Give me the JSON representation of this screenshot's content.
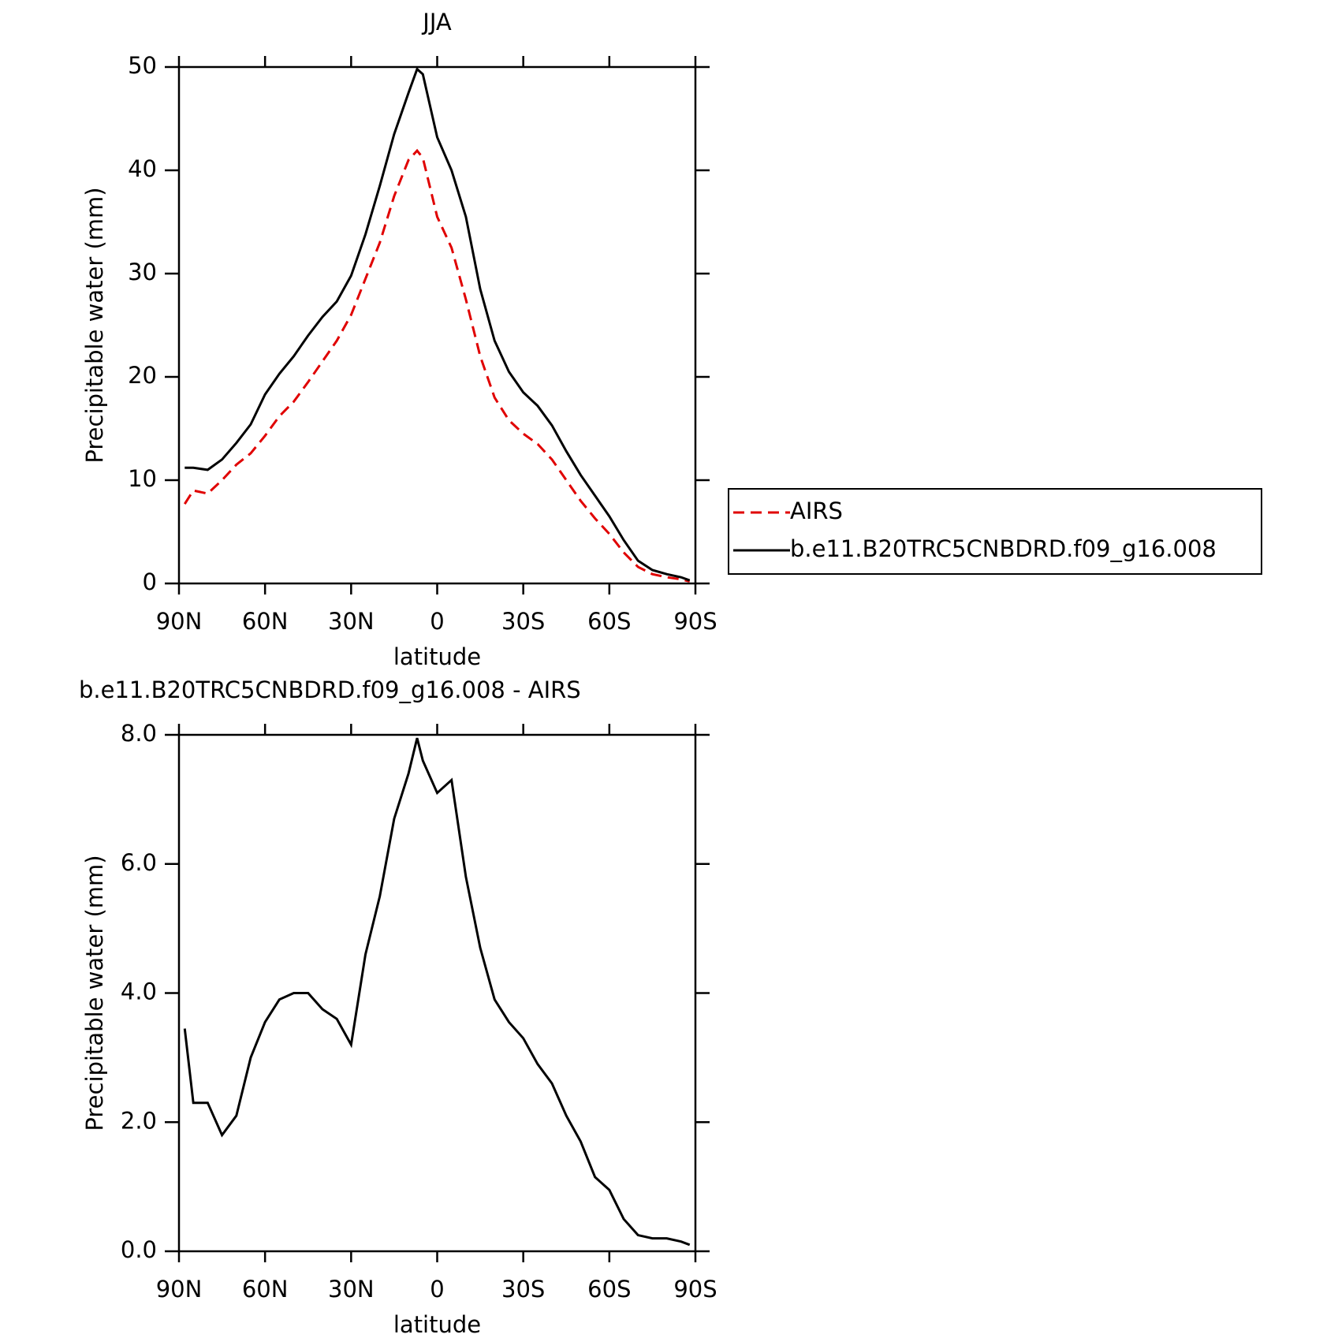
{
  "chart_data": [
    {
      "type": "line",
      "title": "JJA",
      "xlabel": "latitude",
      "ylabel": "Precipitable water (mm)",
      "x": [
        88,
        85,
        80,
        75,
        70,
        65,
        60,
        55,
        50,
        45,
        40,
        35,
        30,
        25,
        20,
        15,
        10,
        7,
        5,
        0,
        -5,
        -10,
        -15,
        -20,
        -25,
        -30,
        -35,
        -40,
        -45,
        -50,
        -55,
        -60,
        -65,
        -70,
        -75,
        -80,
        -85,
        -88
      ],
      "xlim": [
        90,
        -90
      ],
      "xticks": [
        {
          "value": 90,
          "label": "90N"
        },
        {
          "value": 60,
          "label": "60N"
        },
        {
          "value": 30,
          "label": "30N"
        },
        0,
        {
          "value": -30,
          "label": "30S"
        },
        {
          "value": -60,
          "label": "60S"
        },
        {
          "value": -90,
          "label": "90S"
        }
      ],
      "ylim": [
        0,
        50
      ],
      "yticks": [
        0,
        10,
        20,
        30,
        40,
        50
      ],
      "legend": "right",
      "series": [
        {
          "name": "AIRS",
          "color": "#e00000",
          "dash": true,
          "values": [
            7.7,
            9.0,
            8.7,
            10.0,
            11.5,
            12.6,
            14.3,
            16.2,
            17.6,
            19.5,
            21.5,
            23.5,
            26,
            29.5,
            33,
            37.5,
            41,
            41.9,
            41.2,
            35.5,
            32.5,
            27.5,
            22,
            18.0,
            15.8,
            14.5,
            13.5,
            12,
            10,
            8,
            6.3,
            4.8,
            3.0,
            1.6,
            0.9,
            0.6,
            0.4,
            0.2
          ]
        },
        {
          "name": "b.e11.B20TRC5CNBDRD.f09_g16.008",
          "color": "#000000",
          "dash": false,
          "values": [
            11.2,
            11.2,
            11.0,
            12.0,
            13.6,
            15.4,
            18.3,
            20.3,
            22.0,
            24.0,
            25.8,
            27.3,
            29.8,
            33.8,
            38.5,
            43.5,
            47.5,
            49.8,
            49.3,
            43.2,
            40.0,
            35.5,
            28.5,
            23.5,
            20.5,
            18.5,
            17.2,
            15.3,
            12.8,
            10.5,
            8.5,
            6.5,
            4.2,
            2.2,
            1.3,
            0.9,
            0.6,
            0.3
          ]
        }
      ]
    },
    {
      "type": "line",
      "title": "b.e11.B20TRC5CNBDRD.f09_g16.008 - AIRS",
      "xlabel": "latitude",
      "ylabel": "Precipitable water (mm)",
      "x": [
        88,
        85,
        80,
        75,
        70,
        65,
        60,
        55,
        50,
        45,
        40,
        35,
        30,
        25,
        20,
        15,
        10,
        7,
        5,
        0,
        -5,
        -10,
        -15,
        -20,
        -25,
        -30,
        -35,
        -40,
        -45,
        -50,
        -55,
        -60,
        -65,
        -70,
        -75,
        -80,
        -85,
        -88
      ],
      "xlim": [
        90,
        -90
      ],
      "xticks": [
        {
          "value": 90,
          "label": "90N"
        },
        {
          "value": 60,
          "label": "60N"
        },
        {
          "value": 30,
          "label": "30N"
        },
        0,
        {
          "value": -30,
          "label": "30S"
        },
        {
          "value": -60,
          "label": "60S"
        },
        {
          "value": -90,
          "label": "90S"
        }
      ],
      "ylim": [
        0,
        8
      ],
      "yticks": [
        {
          "value": 0,
          "label": "0.0"
        },
        {
          "value": 2,
          "label": "2.0"
        },
        {
          "value": 4,
          "label": "4.0"
        },
        {
          "value": 6,
          "label": "6.0"
        },
        {
          "value": 8,
          "label": "8.0"
        }
      ],
      "series": [
        {
          "color": "#000000",
          "dash": false,
          "values": [
            3.45,
            2.3,
            2.3,
            1.8,
            2.1,
            3.0,
            3.55,
            3.9,
            4.0,
            4.0,
            3.75,
            3.6,
            3.2,
            4.6,
            5.5,
            6.7,
            7.4,
            7.95,
            7.6,
            7.1,
            7.3,
            5.8,
            4.7,
            3.9,
            3.55,
            3.3,
            2.9,
            2.6,
            2.1,
            1.7,
            1.15,
            0.95,
            0.5,
            0.25,
            0.2,
            0.2,
            0.15,
            0.1
          ]
        }
      ]
    }
  ]
}
